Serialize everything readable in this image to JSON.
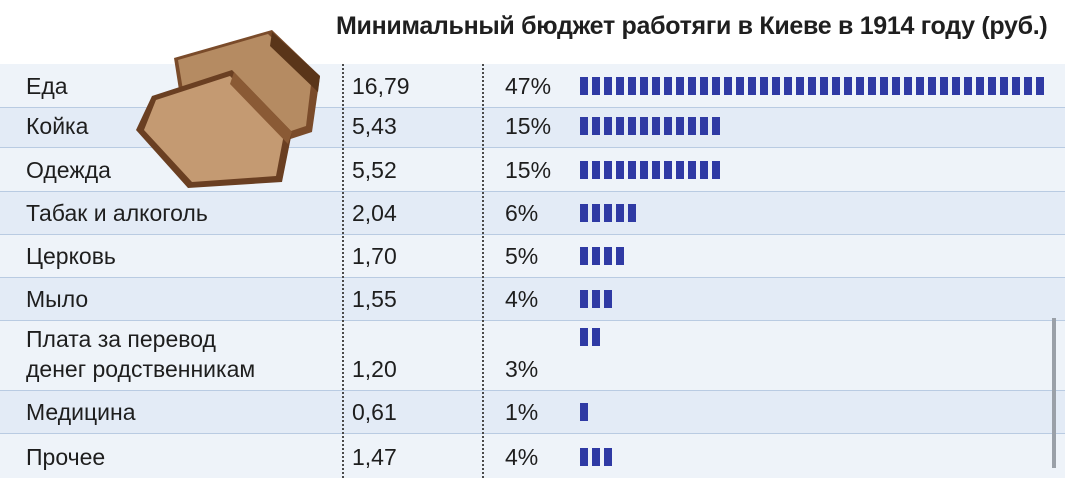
{
  "chart_data": {
    "type": "bar",
    "title": "Минимальный бюджет работяги в Киеве в 1914 году (руб.)",
    "categories": [
      "Еда",
      "Койка",
      "Одежда",
      "Табак и алкоголь",
      "Церковь",
      "Мыло",
      "Плата за перевод денег родственникам",
      "Медицина",
      "Прочее"
    ],
    "category_lines": [
      [
        "Еда"
      ],
      [
        "Койка"
      ],
      [
        "Одежда"
      ],
      [
        "Табак и алкоголь"
      ],
      [
        "Церковь"
      ],
      [
        "Мыло"
      ],
      [
        "Плата за перевод",
        "денег родственникам"
      ],
      [
        "Медицина"
      ],
      [
        "Прочее"
      ]
    ],
    "values": [
      16.79,
      5.43,
      5.52,
      2.04,
      1.7,
      1.55,
      1.2,
      0.61,
      1.47
    ],
    "value_labels": [
      "16,79",
      "5,43",
      "5,52",
      "2,04",
      "1,70",
      "1,55",
      "1,20",
      "0,61",
      "1,47"
    ],
    "percents": [
      47,
      15,
      15,
      6,
      5,
      4,
      3,
      1,
      4
    ],
    "percent_labels": [
      "47%",
      "15%",
      "15%",
      "6%",
      "5%",
      "4%",
      "3%",
      "1%",
      "4%"
    ],
    "bar_color": "#2f3aa4"
  }
}
